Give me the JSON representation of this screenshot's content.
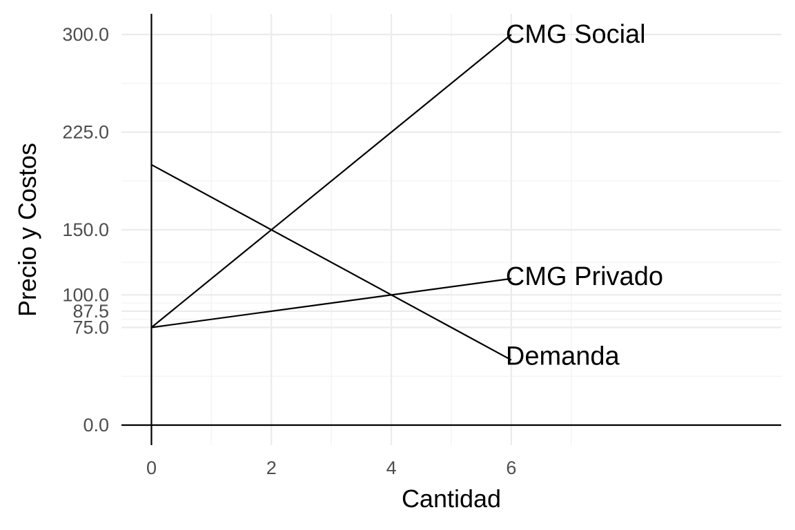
{
  "chart_data": {
    "type": "line",
    "xlabel": "Cantidad",
    "ylabel": "Precio y Costos",
    "xlim": [
      -0.5,
      10.5
    ],
    "ylim": [
      0,
      300
    ],
    "x_ticks": [
      0,
      2,
      4,
      6
    ],
    "x_tick_labels": [
      "0",
      "2",
      "4",
      "6"
    ],
    "x_minor_gridlines": [
      1,
      3,
      5,
      7
    ],
    "y_ticks": [
      0,
      75,
      87.5,
      100,
      150,
      225,
      300
    ],
    "y_tick_labels": [
      "0.0",
      "75.0",
      "87.5",
      "100.0",
      "150.0",
      "225.0",
      "300.0"
    ],
    "y_minor_gridlines": [
      37.5,
      81.25,
      93.75,
      125,
      187.5,
      262.5
    ],
    "grid": true,
    "series": [
      {
        "name": "CMG Social",
        "x": [
          0,
          6
        ],
        "y": [
          75,
          300
        ]
      },
      {
        "name": "CMG Privado",
        "x": [
          0,
          6
        ],
        "y": [
          75,
          112.5
        ]
      },
      {
        "name": "Demanda",
        "x": [
          0,
          6
        ],
        "y": [
          200,
          50
        ]
      }
    ],
    "reference_lines": [
      {
        "orientation": "vertical",
        "value": 0
      },
      {
        "orientation": "horizontal",
        "value": 0
      }
    ]
  },
  "colors": {
    "line": "#000000",
    "grid_major": "#ebebeb",
    "grid_minor": "#f5f5f5",
    "tick_text": "#4d4d4d",
    "background": "#ffffff"
  }
}
